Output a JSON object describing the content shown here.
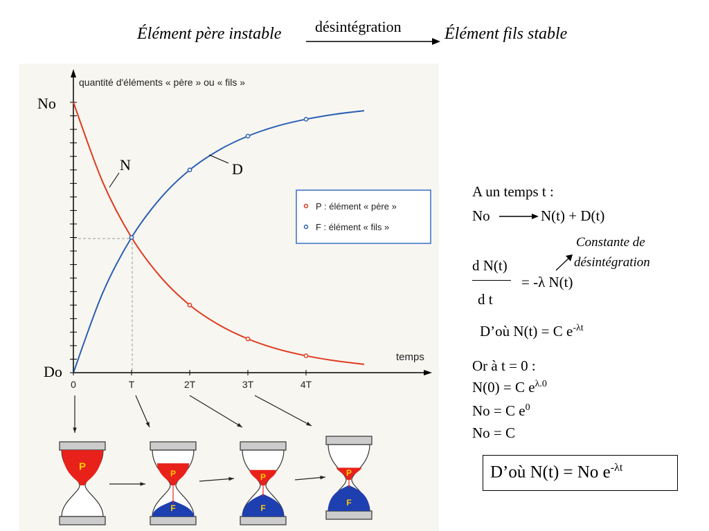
{
  "header": {
    "left": "Élément père instable",
    "arrow_label": "désintégration",
    "right": "Élément fils stable"
  },
  "chart_data": {
    "type": "line",
    "title": "",
    "ylabel": "quantité d'éléments « père » ou « fils »",
    "xlabel": "temps",
    "x_ticks": [
      "0",
      "T",
      "2T",
      "3T",
      "4T"
    ],
    "y_top_label": "No",
    "y_bottom_label": "Do",
    "xlim": [
      0,
      5.3
    ],
    "ylim": [
      0,
      1
    ],
    "grid": false,
    "legend_position": "right",
    "series": [
      {
        "name": "P : élément « père »",
        "curve_label": "N",
        "color": "#e03a1e",
        "x": [
          0,
          0.5,
          1,
          1.5,
          2,
          2.5,
          3,
          3.5,
          4,
          4.5,
          5
        ],
        "values": [
          1,
          0.707,
          0.5,
          0.354,
          0.25,
          0.177,
          0.125,
          0.088,
          0.0625,
          0.044,
          0.031
        ],
        "markers_x": [
          1,
          2,
          3,
          4
        ],
        "markers": [
          0.5,
          0.25,
          0.125,
          0.0625
        ]
      },
      {
        "name": "F : élément « fils »",
        "curve_label": "D",
        "color": "#2b5fb3",
        "x": [
          0,
          0.5,
          1,
          1.5,
          2,
          2.5,
          3,
          3.5,
          4,
          4.5,
          5
        ],
        "values": [
          0,
          0.293,
          0.5,
          0.646,
          0.75,
          0.823,
          0.875,
          0.912,
          0.9375,
          0.956,
          0.969
        ],
        "markers_x": [
          1,
          2,
          3,
          4
        ],
        "markers": [
          0.5,
          0.75,
          0.875,
          0.9375
        ]
      }
    ],
    "hourglass_labels": {
      "top": "P",
      "bottom": "F"
    },
    "hourglass_fill_pere": [
      1,
      0.5,
      0.25,
      0.125
    ],
    "colors": {
      "pere": "#e8211b",
      "fils": "#1e3fb0",
      "frame": "#cccccc"
    }
  },
  "equations": {
    "a_un_temps": "A un temps t :",
    "no": "No",
    "nt_dt": "N(t) + D(t)",
    "constante_line1": "Constante de",
    "constante_line2": "désintégration",
    "dn": "d N(t)",
    "dt": "d t",
    "eq_rhs": "= -λ N(t)",
    "dou_text": "D’où N(t) = C e",
    "dou_exp": "-λt",
    "or_text": "Or à t = 0 :",
    "n0_text": "N(0) = C e",
    "n0_exp": "λ.0",
    "no_c_text": "No = C e",
    "no_c_exp": "0",
    "no_eq_c": "No = C",
    "result_text": "D’où N(t) = No e",
    "result_exp": "-λt"
  }
}
